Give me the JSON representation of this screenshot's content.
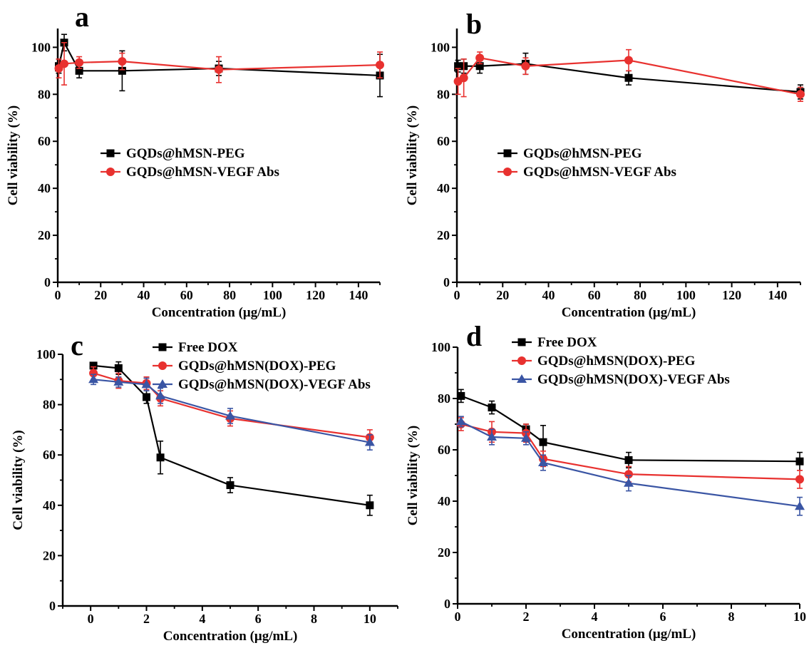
{
  "chart_data": [
    {
      "type": "line",
      "panel_label": "a",
      "xlabel": "Concentration (μg/mL)",
      "ylabel": "Cell viability (%)",
      "xlim": [
        0,
        150
      ],
      "ylim": [
        0,
        108
      ],
      "x_ticks": [
        0,
        20,
        40,
        60,
        80,
        100,
        120,
        140
      ],
      "y_ticks": [
        0,
        20,
        40,
        60,
        80,
        100
      ],
      "x_minor_step": 10,
      "y_minor_step": 10,
      "grid": false,
      "legend_position": "middle-left",
      "series": [
        {
          "name": "GQDs@hMSN-PEG",
          "color": "#000000",
          "marker": "square",
          "x": [
            0.5,
            3,
            10,
            30,
            75,
            150
          ],
          "y": [
            92,
            102,
            90,
            90,
            91,
            88
          ],
          "err": [
            3,
            3.5,
            3,
            8.5,
            3,
            9
          ]
        },
        {
          "name": "GQDs@hMSN-VEGF Abs",
          "color": "#e8312f",
          "marker": "circle",
          "x": [
            0.5,
            3,
            10,
            30,
            75,
            150
          ],
          "y": [
            91,
            93,
            93.5,
            94,
            90.5,
            92.5
          ],
          "err": [
            4,
            9,
            2.5,
            3.5,
            5.5,
            5.5
          ]
        }
      ]
    },
    {
      "type": "line",
      "panel_label": "b",
      "xlabel": "Concentration (μg/mL)",
      "ylabel": "Cell viability (%)",
      "xlim": [
        0,
        150
      ],
      "ylim": [
        0,
        108
      ],
      "x_ticks": [
        0,
        20,
        40,
        60,
        80,
        100,
        120,
        140
      ],
      "y_ticks": [
        0,
        20,
        40,
        60,
        80,
        100
      ],
      "x_minor_step": 10,
      "y_minor_step": 10,
      "grid": false,
      "legend_position": "middle-left",
      "series": [
        {
          "name": "GQDs@hMSN-PEG",
          "color": "#000000",
          "marker": "square",
          "x": [
            0.5,
            3,
            10,
            30,
            75,
            150
          ],
          "y": [
            92,
            92,
            92,
            93,
            87,
            81
          ],
          "err": [
            2.5,
            3,
            3,
            4.5,
            3,
            3
          ]
        },
        {
          "name": "GQDs@hMSN-VEGF Abs",
          "color": "#e8312f",
          "marker": "circle",
          "x": [
            0.5,
            3,
            10,
            30,
            75,
            150
          ],
          "y": [
            85.5,
            87,
            95.5,
            92,
            94.5,
            80
          ],
          "err": [
            5.5,
            8,
            2.5,
            3.5,
            4.5,
            3
          ]
        }
      ]
    },
    {
      "type": "line",
      "panel_label": "c",
      "xlabel": "Concentration (μg/mL)",
      "ylabel": "Cell viability (%)",
      "xlim": [
        -1,
        11
      ],
      "ylim": [
        0,
        100
      ],
      "x_ticks": [
        0,
        2,
        4,
        6,
        8,
        10
      ],
      "y_ticks": [
        0,
        20,
        40,
        60,
        80,
        100
      ],
      "x_minor_step": 1,
      "y_minor_step": 10,
      "grid": false,
      "legend_position": "top-right",
      "series": [
        {
          "name": "Free DOX",
          "color": "#000000",
          "marker": "square",
          "x": [
            0.1,
            1,
            2,
            2.5,
            5,
            10
          ],
          "y": [
            95.5,
            94.5,
            83,
            59,
            48,
            40
          ],
          "err": [
            1,
            2.5,
            2.5,
            6.5,
            3,
            4
          ]
        },
        {
          "name": "GQDs@hMSN(DOX)-PEG",
          "color": "#e8312f",
          "marker": "circle",
          "x": [
            0.1,
            1,
            2,
            2.5,
            5,
            10
          ],
          "y": [
            92.5,
            89.5,
            88.5,
            82.5,
            74.5,
            67
          ],
          "err": [
            2.5,
            3,
            2.5,
            3,
            3,
            3
          ]
        },
        {
          "name": "GQDs@hMSN(DOX)-VEGF Abs",
          "color": "#3a55a4",
          "marker": "triangle",
          "x": [
            0.1,
            1,
            2,
            2.5,
            5,
            10
          ],
          "y": [
            90,
            89,
            88,
            83.5,
            75.5,
            65
          ],
          "err": [
            2,
            2,
            2.5,
            3,
            3,
            3
          ]
        }
      ]
    },
    {
      "type": "line",
      "panel_label": "d",
      "xlabel": "Concentration (μg/mL)",
      "ylabel": "Cell viability (%)",
      "xlim": [
        0,
        10
      ],
      "ylim": [
        0,
        100
      ],
      "x_ticks": [
        0,
        2,
        4,
        6,
        8,
        10
      ],
      "y_ticks": [
        0,
        20,
        40,
        60,
        80,
        100
      ],
      "x_minor_step": 1,
      "y_minor_step": 10,
      "grid": false,
      "legend_position": "top-right",
      "series": [
        {
          "name": "Free DOX",
          "color": "#000000",
          "marker": "square",
          "x": [
            0.1,
            1,
            2,
            2.5,
            5,
            10
          ],
          "y": [
            81,
            76.5,
            68,
            63,
            56,
            55.5
          ],
          "err": [
            2.5,
            2.5,
            2,
            6.5,
            3,
            3.5
          ]
        },
        {
          "name": "GQDs@hMSN(DOX)-PEG",
          "color": "#e8312f",
          "marker": "circle",
          "x": [
            0.1,
            1,
            2,
            2.5,
            5,
            10
          ],
          "y": [
            70,
            67,
            66.5,
            56.5,
            50.5,
            48.5
          ],
          "err": [
            2.5,
            4,
            3.5,
            3,
            3,
            3.5
          ]
        },
        {
          "name": "GQDs@hMSN(DOX)-VEGF Abs",
          "color": "#3a55a4",
          "marker": "triangle",
          "x": [
            0.1,
            1,
            2,
            2.5,
            5,
            10
          ],
          "y": [
            71,
            65,
            64.5,
            55,
            47,
            38
          ],
          "err": [
            2,
            3,
            2.5,
            3,
            3,
            3.5
          ]
        }
      ]
    }
  ]
}
